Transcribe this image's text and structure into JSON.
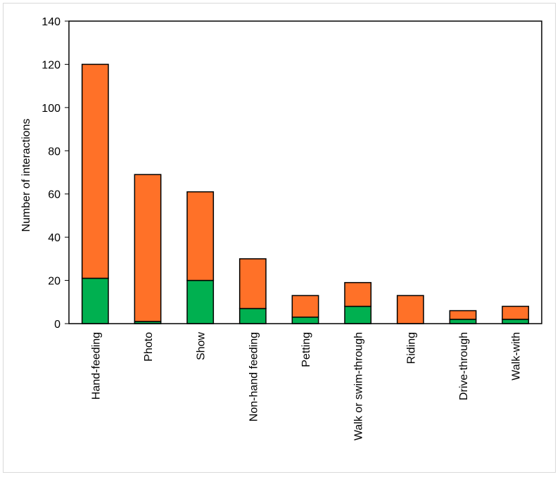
{
  "chart_data": {
    "type": "bar",
    "stacked": true,
    "categories": [
      "Hand-feeding",
      "Photo",
      "Show",
      "Non-hand feeding",
      "Petting",
      "Walk or swim-through",
      "Riding",
      "Drive-through",
      "Walk-with"
    ],
    "series": [
      {
        "color": "#00b050",
        "values": [
          21,
          1,
          20,
          7,
          3,
          8,
          0,
          2,
          2
        ]
      },
      {
        "color": "#ff7128",
        "values": [
          99,
          68,
          41,
          23,
          10,
          11,
          13,
          4,
          6
        ]
      }
    ],
    "title": "",
    "xlabel": "",
    "ylabel": "Number of interactions",
    "ylim": [
      0,
      140
    ],
    "yticks": [
      0,
      20,
      40,
      60,
      80,
      100,
      120,
      140
    ],
    "grid": false,
    "legend": "none"
  }
}
